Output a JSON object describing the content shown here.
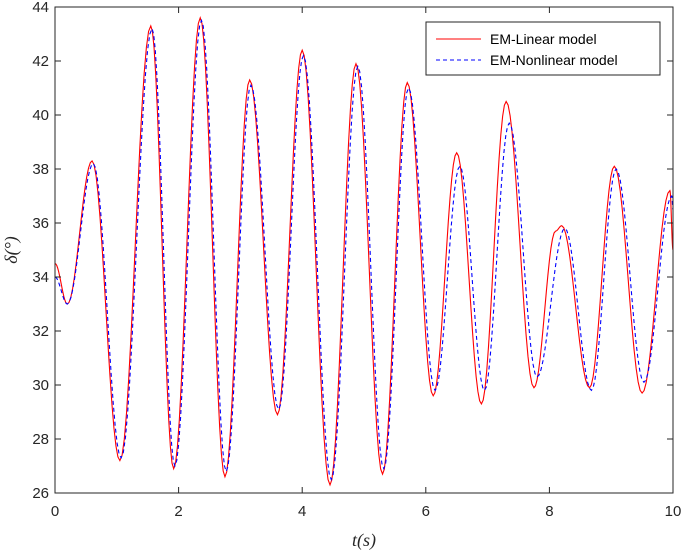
{
  "chart_data": {
    "type": "line",
    "xlabel": "t(s)",
    "ylabel": "δ(°)",
    "xlim": [
      0,
      10
    ],
    "ylim": [
      26,
      44
    ],
    "xticks": [
      0,
      2,
      4,
      6,
      8,
      10
    ],
    "yticks": [
      26,
      28,
      30,
      32,
      34,
      36,
      38,
      40,
      42,
      44
    ],
    "grid": false,
    "legend_position": "top-right",
    "series": [
      {
        "name": "EM-Linear model",
        "color": "#ff0000",
        "style": "solid",
        "points": [
          [
            0,
            34.5
          ],
          [
            0.2,
            33.0
          ],
          [
            0.6,
            38.3
          ],
          [
            1.05,
            27.2
          ],
          [
            1.55,
            43.3
          ],
          [
            1.92,
            26.9
          ],
          [
            2.35,
            43.6
          ],
          [
            2.75,
            26.6
          ],
          [
            3.15,
            41.3
          ],
          [
            3.6,
            28.9
          ],
          [
            4.0,
            42.4
          ],
          [
            4.45,
            26.3
          ],
          [
            4.87,
            41.9
          ],
          [
            5.3,
            26.7
          ],
          [
            5.7,
            41.2
          ],
          [
            6.12,
            29.6
          ],
          [
            6.5,
            38.6
          ],
          [
            6.9,
            29.3
          ],
          [
            7.3,
            40.5
          ],
          [
            7.75,
            29.9
          ],
          [
            8.1,
            35.7
          ],
          [
            8.2,
            35.9
          ],
          [
            8.65,
            29.9
          ],
          [
            9.05,
            38.1
          ],
          [
            9.5,
            29.7
          ],
          [
            9.95,
            37.2
          ],
          [
            10.0,
            35.0
          ]
        ]
      },
      {
        "name": "EM-Nonlinear model",
        "color": "#0000ff",
        "style": "dashed",
        "points": [
          [
            0,
            34.0
          ],
          [
            0.2,
            33.0
          ],
          [
            0.62,
            38.2
          ],
          [
            1.07,
            27.3
          ],
          [
            1.57,
            43.2
          ],
          [
            1.94,
            27.0
          ],
          [
            2.37,
            43.5
          ],
          [
            2.77,
            26.8
          ],
          [
            3.17,
            41.1
          ],
          [
            3.62,
            29.1
          ],
          [
            4.02,
            42.2
          ],
          [
            4.47,
            26.5
          ],
          [
            4.9,
            41.8
          ],
          [
            5.32,
            26.9
          ],
          [
            5.72,
            41.0
          ],
          [
            6.15,
            29.8
          ],
          [
            6.55,
            38.1
          ],
          [
            6.95,
            29.8
          ],
          [
            7.35,
            39.7
          ],
          [
            7.8,
            30.3
          ],
          [
            8.25,
            35.8
          ],
          [
            8.68,
            29.8
          ],
          [
            9.08,
            38.0
          ],
          [
            9.53,
            30.1
          ],
          [
            9.98,
            37.0
          ],
          [
            10.0,
            36.5
          ]
        ]
      }
    ]
  }
}
